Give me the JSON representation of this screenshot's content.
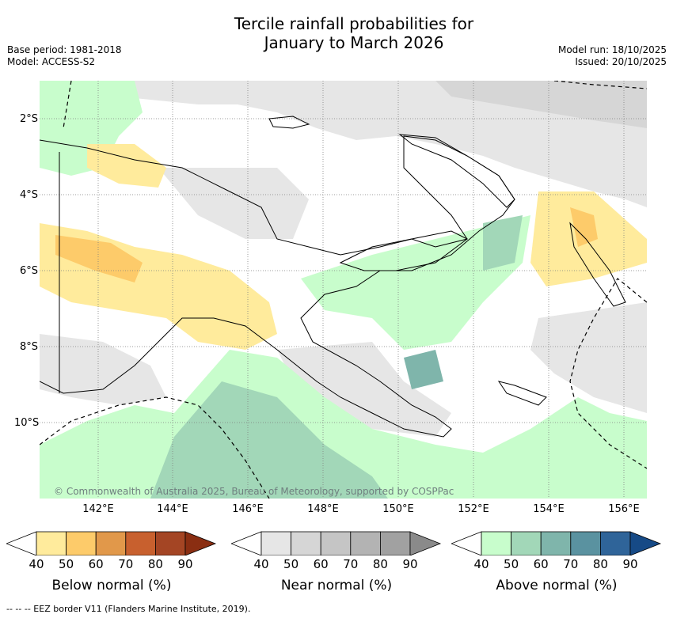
{
  "title_line1": "Tercile rainfall probabilities for",
  "title_line2": "January to March 2026",
  "meta_left": {
    "base_period": "Base period: 1981-2018",
    "model": "Model: ACCESS-S2"
  },
  "meta_right": {
    "model_run": "Model run: 18/10/2025",
    "issued": "Issued: 20/10/2025"
  },
  "map": {
    "lat_labels": [
      "2°S",
      "4°S",
      "6°S",
      "8°S",
      "10°S"
    ],
    "lon_labels": [
      "142°E",
      "144°E",
      "146°E",
      "148°E",
      "150°E",
      "152°E",
      "154°E",
      "156°E"
    ],
    "copyright": "© Commonwealth of Australia 2025, Bureau of Meteorology, supported by COSPPac",
    "colors": {
      "land_outline": "#000000",
      "grid": "#7f7f7f"
    }
  },
  "legends": [
    {
      "name": "below",
      "title": "Below normal (%)",
      "ticks": [
        "40",
        "50",
        "60",
        "70",
        "80",
        "90"
      ],
      "colors": [
        "#ffeb9c",
        "#fdcb6a",
        "#e1984a",
        "#c8602e",
        "#a44524",
        "#8a2e12"
      ]
    },
    {
      "name": "near",
      "title": "Near normal (%)",
      "ticks": [
        "40",
        "50",
        "60",
        "70",
        "80",
        "90"
      ],
      "colors": [
        "#e6e6e6",
        "#d6d6d6",
        "#c5c5c5",
        "#b3b3b3",
        "#a1a1a1",
        "#8a8a8a"
      ]
    },
    {
      "name": "above",
      "title": "Above normal (%)",
      "ticks": [
        "40",
        "50",
        "60",
        "70",
        "80",
        "90"
      ],
      "colors": [
        "#c8fdcc",
        "#a2d7b8",
        "#7fb5ab",
        "#5a92a0",
        "#2f6499",
        "#164a86"
      ]
    }
  ],
  "footer": "--  --  -- EEZ border V11 (Flanders Marine Institute, 2019)."
}
